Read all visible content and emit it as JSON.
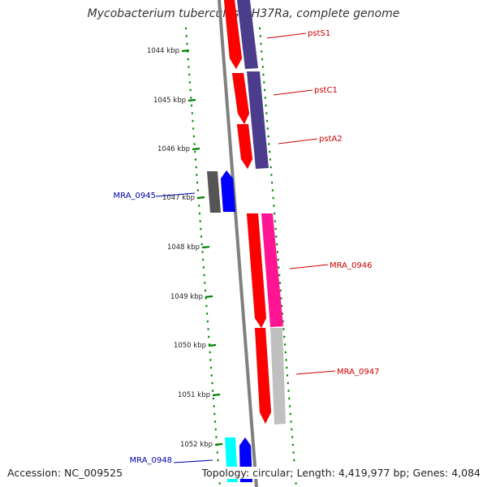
{
  "title": "Mycobacterium tuberculosis H37Ra, complete genome",
  "ticks": [
    "1044 kbp",
    "1045 kbp",
    "1046 kbp",
    "1047 kbp",
    "1048 kbp",
    "1049 kbp",
    "1050 kbp",
    "1051 kbp",
    "1052 kbp"
  ],
  "genes": [
    {
      "name": "pstS1",
      "strand": "forward",
      "color": "#ff0000",
      "label_color": "#cc0000"
    },
    {
      "name": "pstC1",
      "strand": "forward",
      "color": "#ff0000",
      "label_color": "#cc0000"
    },
    {
      "name": "pstA2",
      "strand": "forward",
      "color": "#ff0000",
      "label_color": "#cc0000"
    },
    {
      "name": "MRA_0945",
      "strand": "reverse",
      "color": "#0000ff",
      "label_color": "#0000aa"
    },
    {
      "name": "MRA_0946",
      "strand": "forward",
      "color": "#ff0000",
      "label_color": "#cc0000"
    },
    {
      "name": "MRA_0947",
      "strand": "forward",
      "color": "#ff0000",
      "label_color": "#cc0000"
    },
    {
      "name": "MRA_0948",
      "strand": "reverse",
      "color": "#0000ff",
      "label_color": "#0000aa"
    }
  ],
  "colors": {
    "backbone": "#808080",
    "ticks": "#008000",
    "cog_purple": "#4b3c8c",
    "cog_pink": "#ff1493",
    "cog_gray": "#c0c0c0",
    "cog_dark": "#555555",
    "cog_cyan": "#00ffff"
  },
  "footer": {
    "accession": "Accession: NC_009525",
    "info": "Topology: circular; Length: 4,419,977 bp; Genes: 4,084"
  }
}
